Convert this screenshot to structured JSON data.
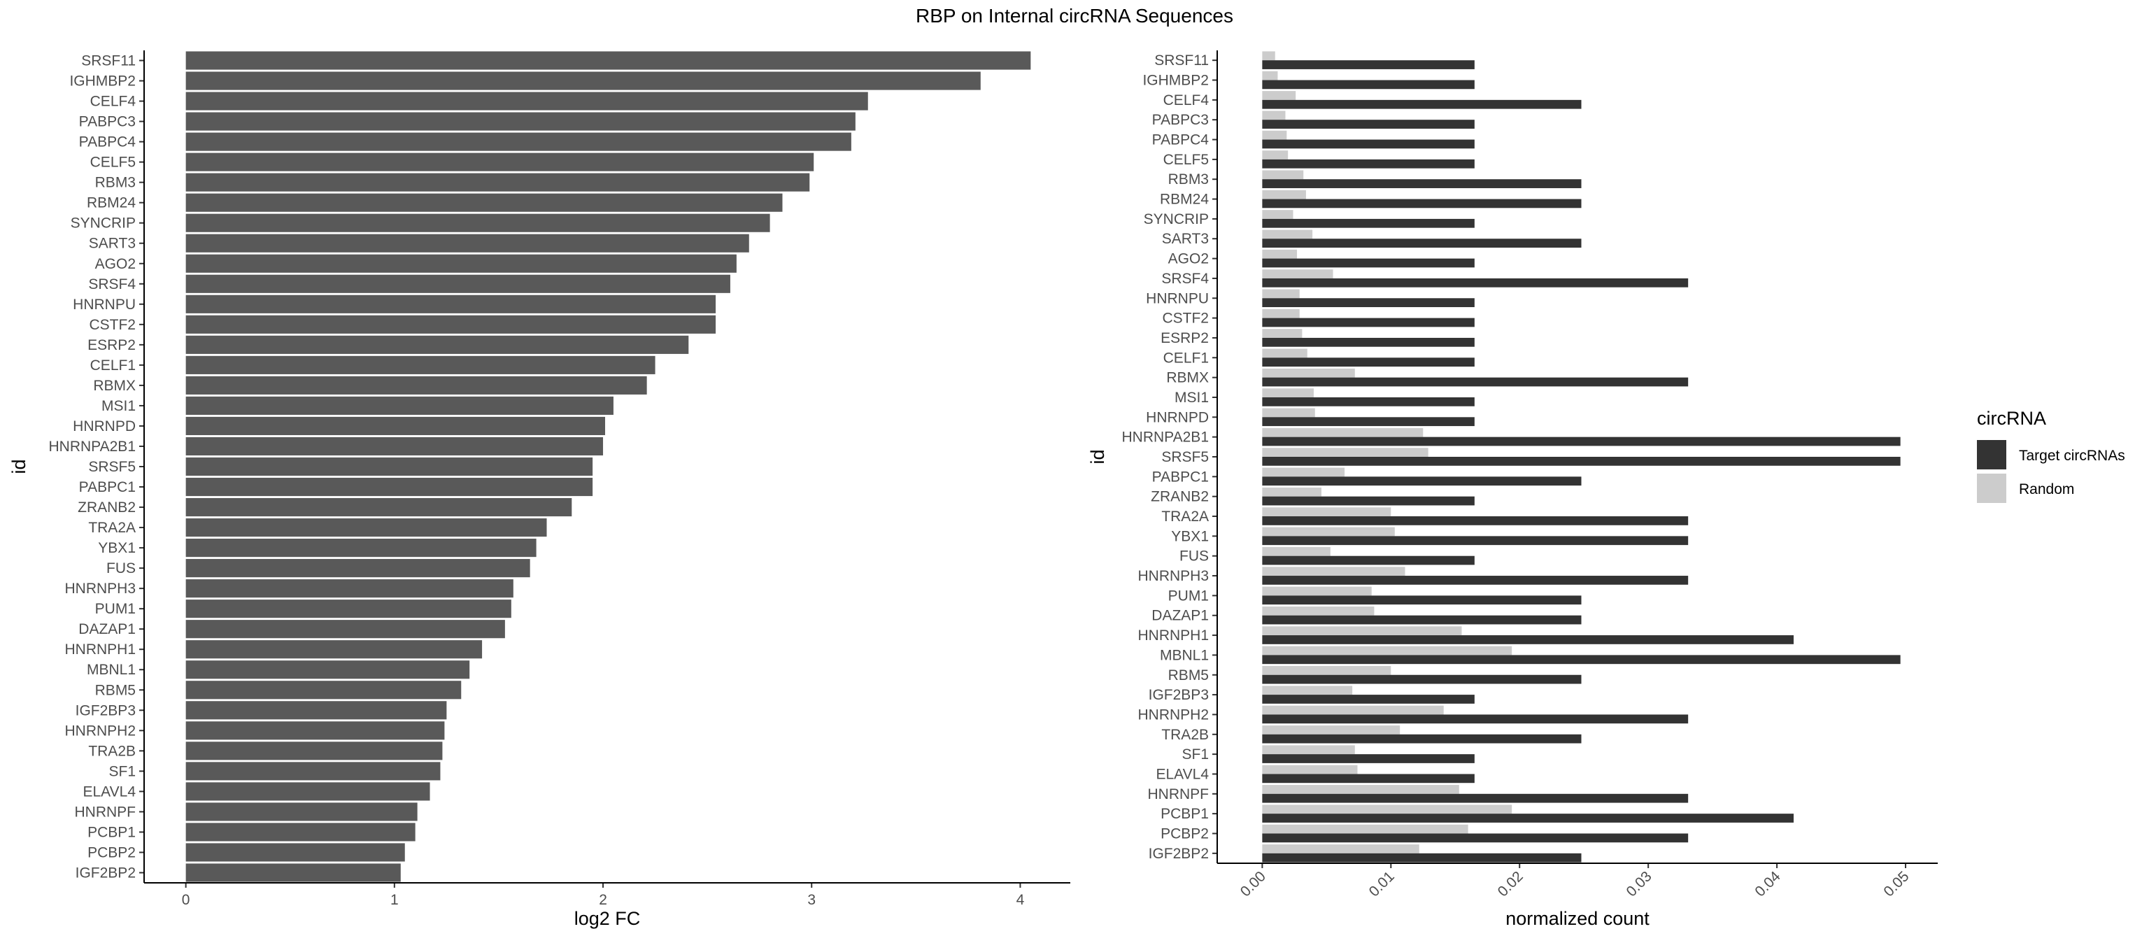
{
  "figure_title": "RBP on Internal circRNA Sequences",
  "chart_data": [
    {
      "type": "bar",
      "orientation": "horizontal",
      "xlabel": "log2 FC",
      "ylabel": "id",
      "xlim": [
        -0.2,
        4.24
      ],
      "xticks": [
        "0",
        "1",
        "2",
        "3",
        "4"
      ],
      "grid": false,
      "categories": [
        "SRSF11",
        "IGHMBP2",
        "CELF4",
        "PABPC3",
        "PABPC4",
        "CELF5",
        "RBM3",
        "RBM24",
        "SYNCRIP",
        "SART3",
        "AGO2",
        "SRSF4",
        "HNRNPU",
        "CSTF2",
        "ESRP2",
        "CELF1",
        "RBMX",
        "MSI1",
        "HNRNPD",
        "HNRNPA2B1",
        "SRSF5",
        "PABPC1",
        "ZRANB2",
        "TRA2A",
        "YBX1",
        "FUS",
        "HNRNPH3",
        "PUM1",
        "DAZAP1",
        "HNRNPH1",
        "MBNL1",
        "RBM5",
        "IGF2BP3",
        "HNRNPH2",
        "TRA2B",
        "SF1",
        "ELAVL4",
        "HNRNPF",
        "PCBP1",
        "PCBP2",
        "IGF2BP2"
      ],
      "values": [
        4.05,
        3.81,
        3.27,
        3.21,
        3.19,
        3.01,
        2.99,
        2.86,
        2.8,
        2.7,
        2.64,
        2.61,
        2.54,
        2.54,
        2.41,
        2.25,
        2.21,
        2.05,
        2.01,
        2.0,
        1.95,
        1.95,
        1.85,
        1.73,
        1.68,
        1.65,
        1.57,
        1.56,
        1.53,
        1.42,
        1.36,
        1.32,
        1.25,
        1.24,
        1.23,
        1.22,
        1.17,
        1.11,
        1.1,
        1.05,
        1.03
      ],
      "color": "#595959"
    },
    {
      "type": "bar",
      "orientation": "horizontal",
      "grouped": true,
      "xlabel": "normalized count",
      "ylabel": "id",
      "xlim": [
        -0.0035,
        0.0525
      ],
      "xticks": [
        "0.00",
        "0.01",
        "0.02",
        "0.03",
        "0.04",
        "0.05"
      ],
      "grid": false,
      "legend_title": "circRNA",
      "legend_position": "right",
      "categories": [
        "SRSF11",
        "IGHMBP2",
        "CELF4",
        "PABPC3",
        "PABPC4",
        "CELF5",
        "RBM3",
        "RBM24",
        "SYNCRIP",
        "SART3",
        "AGO2",
        "SRSF4",
        "HNRNPU",
        "CSTF2",
        "ESRP2",
        "CELF1",
        "RBMX",
        "MSI1",
        "HNRNPD",
        "HNRNPA2B1",
        "SRSF5",
        "PABPC1",
        "ZRANB2",
        "TRA2A",
        "YBX1",
        "FUS",
        "HNRNPH3",
        "PUM1",
        "DAZAP1",
        "HNRNPH1",
        "MBNL1",
        "RBM5",
        "IGF2BP3",
        "HNRNPH2",
        "TRA2B",
        "SF1",
        "ELAVL4",
        "HNRNPF",
        "PCBP1",
        "PCBP2",
        "IGF2BP2"
      ],
      "series": [
        {
          "name": "Target circRNAs",
          "color": "#333333",
          "values": [
            0.0165,
            0.0165,
            0.0248,
            0.0165,
            0.0165,
            0.0165,
            0.0248,
            0.0248,
            0.0165,
            0.0248,
            0.0165,
            0.0331,
            0.0165,
            0.0165,
            0.0165,
            0.0165,
            0.0331,
            0.0165,
            0.0165,
            0.0496,
            0.0496,
            0.0248,
            0.0165,
            0.0331,
            0.0331,
            0.0165,
            0.0331,
            0.0248,
            0.0248,
            0.0413,
            0.0496,
            0.0248,
            0.0165,
            0.0331,
            0.0248,
            0.0165,
            0.0165,
            0.0331,
            0.0413,
            0.0331,
            0.0248
          ]
        },
        {
          "name": "Random",
          "color": "#cccccc",
          "values": [
            0.001,
            0.0012,
            0.0026,
            0.0018,
            0.0019,
            0.002,
            0.0032,
            0.0034,
            0.0024,
            0.0039,
            0.0027,
            0.0055,
            0.0029,
            0.0029,
            0.0031,
            0.0035,
            0.0072,
            0.004,
            0.0041,
            0.0125,
            0.0129,
            0.0064,
            0.0046,
            0.01,
            0.0103,
            0.0053,
            0.0111,
            0.0085,
            0.0087,
            0.0155,
            0.0194,
            0.01,
            0.007,
            0.0141,
            0.0107,
            0.0072,
            0.0074,
            0.0153,
            0.0194,
            0.016,
            0.0122
          ]
        }
      ]
    }
  ]
}
